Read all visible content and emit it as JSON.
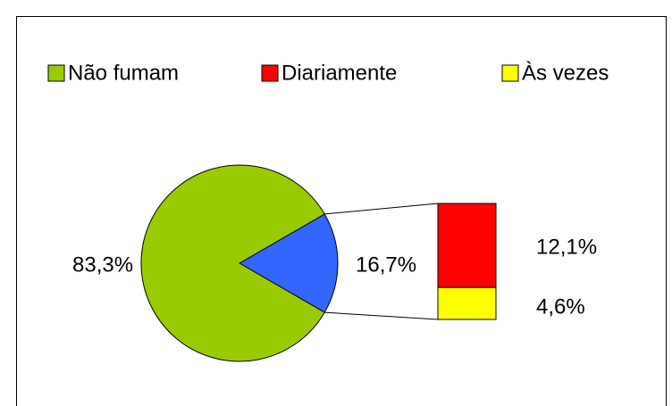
{
  "chart_data": {
    "type": "pie",
    "categories": [
      "Não fumam",
      "Diariamente",
      "Às vezes"
    ],
    "values": [
      83.3,
      12.1,
      4.6
    ],
    "value_labels": [
      "83,3%",
      "12,1%",
      "4,6%"
    ],
    "colors": [
      "#99cc00",
      "#ff0000",
      "#ffff00"
    ],
    "other_value": 16.7,
    "other_label": "16,7%",
    "other_color": "#3366ff",
    "legend": "top"
  }
}
